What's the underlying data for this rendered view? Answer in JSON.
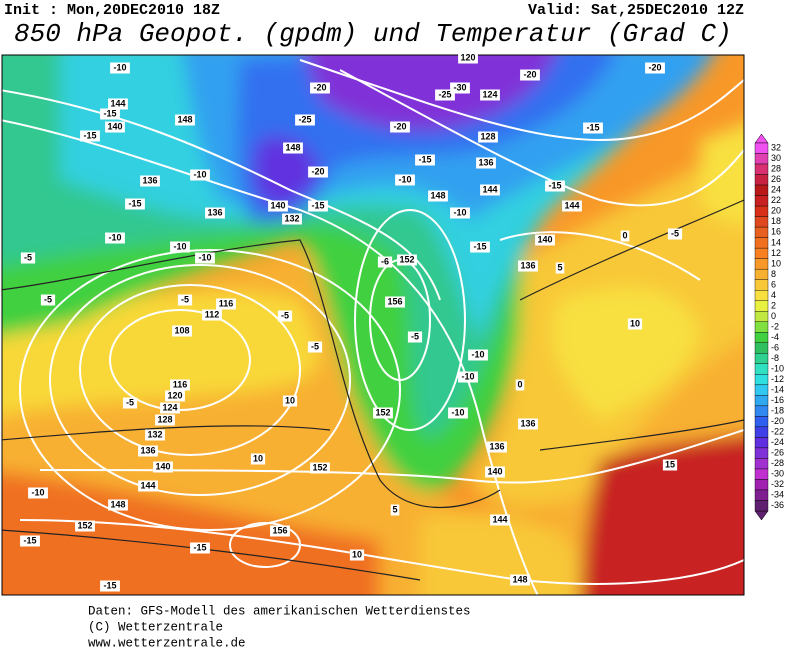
{
  "header": {
    "init": "Init : Mon,20DEC2010 18Z",
    "valid": "Valid: Sat,25DEC2010 12Z",
    "title": "850 hPa Geopot. (gpdm) und Temperatur (Grad C)"
  },
  "legend": {
    "labels": [
      32,
      30,
      28,
      26,
      24,
      22,
      20,
      18,
      16,
      14,
      12,
      10,
      8,
      6,
      4,
      2,
      0,
      -2,
      -4,
      -6,
      -8,
      -10,
      -12,
      -14,
      -16,
      -18,
      -20,
      -22,
      -24,
      -26,
      -28,
      -30,
      -32,
      -34,
      -36
    ],
    "colors": [
      "#f050f0",
      "#e040b0",
      "#d83070",
      "#c82040",
      "#b81818",
      "#c82020",
      "#d83018",
      "#e04820",
      "#e86020",
      "#f07020",
      "#f88020",
      "#f89828",
      "#f8b030",
      "#f8c838",
      "#f8e040",
      "#e8f040",
      "#c0e840",
      "#80e040",
      "#40d040",
      "#30c060",
      "#30d090",
      "#30e0c0",
      "#30e0e0",
      "#30c8f0",
      "#30a8f0",
      "#3088f0",
      "#3060f0",
      "#4040e8",
      "#6030e0",
      "#8030d8",
      "#a030d0",
      "#c030d0",
      "#a020b0",
      "#802090",
      "#602070"
    ]
  },
  "map": {
    "labels": [
      "-10",
      "144",
      "-15",
      "140",
      "-15",
      "148",
      "136",
      "-15",
      "-10",
      "136",
      "-10",
      "-10",
      "-10",
      "-5",
      "-5",
      "-5",
      "116",
      "112",
      "108",
      "116",
      "120",
      "124",
      "128",
      "132",
      "136",
      "140",
      "144",
      "148",
      "152",
      "-10",
      "-15",
      "-15",
      "-15",
      "156",
      "152",
      "10",
      "10",
      "-5",
      "-5",
      "140",
      "132",
      "-15",
      "-20",
      "-25",
      "-30",
      "124",
      "120",
      "-20",
      "-20",
      "-15",
      "-20",
      "-15",
      "128",
      "136",
      "144",
      "-10",
      "148",
      "-10",
      "-15",
      "144",
      "140",
      "-15",
      "136",
      "-6",
      "152",
      "156",
      "-5",
      "-10",
      "-10",
      "-10",
      "152",
      "136",
      "136",
      "140",
      "144",
      "148",
      "0",
      "-5",
      "5",
      "0",
      "5",
      "10",
      "10",
      "15",
      "-5",
      "-20",
      "-25",
      "148"
    ]
  },
  "footer": [
    "Daten: GFS-Modell des amerikanischen Wetterdienstes",
    "(C) Wetterzentrale",
    "www.wetterzentrale.de"
  ]
}
